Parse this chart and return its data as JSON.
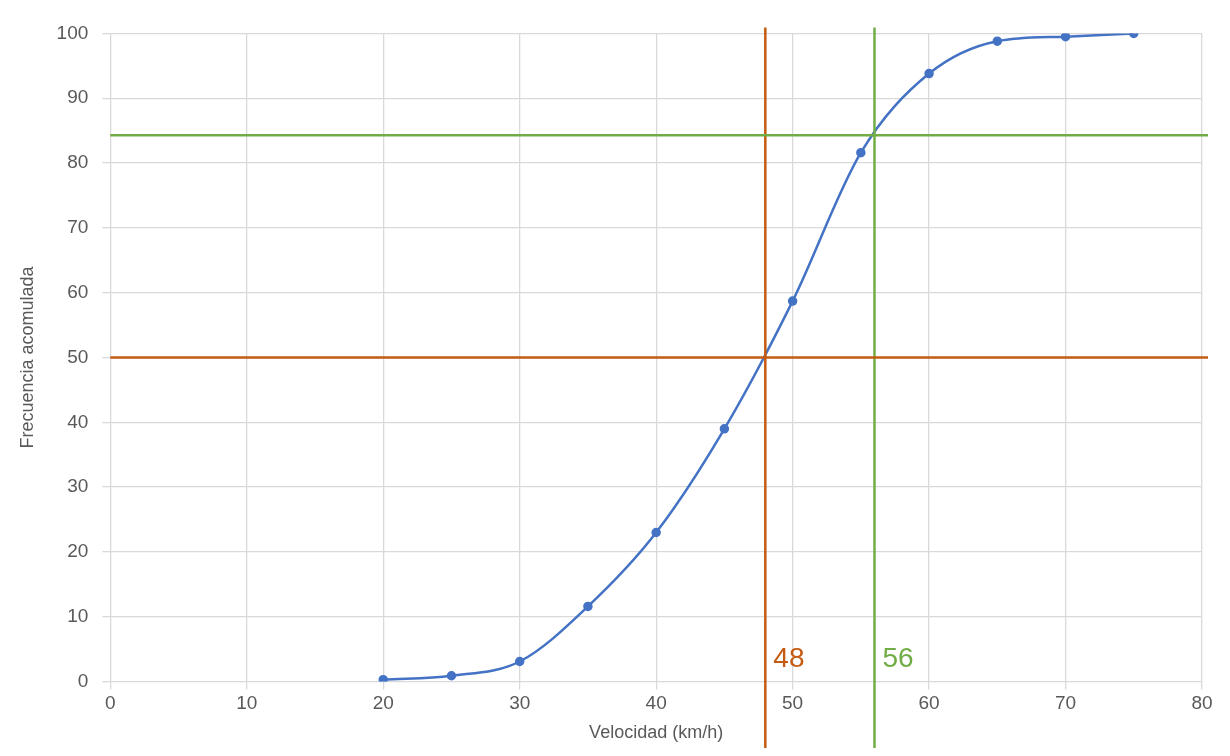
{
  "chart_data": {
    "type": "line",
    "xlabel": "Velocidad (km/h)",
    "ylabel": "Frecuencia acomulada",
    "x": [
      20,
      25,
      30,
      35,
      40,
      45,
      50,
      55,
      60,
      65,
      70,
      75
    ],
    "series": [
      {
        "color": "#4472c4",
        "values": [
          0.3,
          0.9,
          3.1,
          11.6,
          23,
          39,
          58.7,
          81.6,
          93.8,
          98.8,
          99.5,
          100
        ]
      }
    ],
    "xlim": [
      0,
      80
    ],
    "xticks": [
      0,
      10,
      20,
      30,
      40,
      50,
      60,
      70,
      80
    ],
    "ylim": [
      0,
      100
    ],
    "yticks": [
      0,
      10,
      20,
      30,
      40,
      50,
      60,
      70,
      80,
      90,
      100
    ],
    "grid": true,
    "legend": false,
    "marker": "circle",
    "line_style": "solid",
    "ref_lines": [
      {
        "axis": "x",
        "value": 48,
        "label": "48",
        "color": "#c55a11"
      },
      {
        "axis": "x",
        "value": 56,
        "label": "56",
        "color": "#70ad47"
      },
      {
        "axis": "y",
        "value": 50,
        "color": "#c55a11"
      },
      {
        "axis": "y",
        "value": 84.3,
        "color": "#70ad47"
      }
    ]
  }
}
